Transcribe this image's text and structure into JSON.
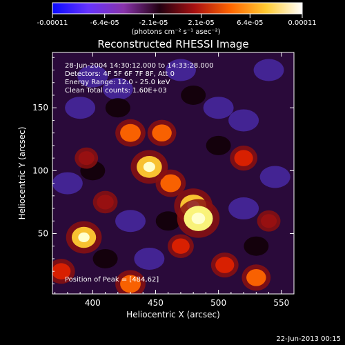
{
  "colorbar": {
    "tick_labels": [
      "-0.00011",
      "-6.4e-05",
      "-2.1e-05",
      "2.1e-05",
      "6.4e-05",
      "0.00011"
    ],
    "tick_values": [
      -0.00011,
      -6.4e-05,
      -2.1e-05,
      2.1e-05,
      6.4e-05,
      0.00011
    ],
    "range": [
      -0.00011,
      0.00011
    ],
    "unit_label": "(photons cm⁻² s⁻¹ asec⁻²)",
    "colors": [
      "#0a0aff",
      "#6633ff",
      "#8833aa",
      "#220011",
      "#aa1111",
      "#ff6600",
      "#ffcc33",
      "#ffffff"
    ]
  },
  "chart_data": {
    "type": "heatmap",
    "title": "Reconstructed RHESSI Image",
    "xlabel": "Heliocentric X (arcsec)",
    "ylabel": "Heliocentric Y (arcsec)",
    "xlim": [
      368,
      560
    ],
    "ylim": [
      2,
      194
    ],
    "xticks": [
      400,
      450,
      500,
      550
    ],
    "yticks": [
      50,
      100,
      150
    ],
    "info_lines": [
      "28-Jun-2004 14:30:12.000 to 14:33:28.000",
      "Detectors: 4F 5F 6F 7F 8F, Att 0",
      "Energy Range: 12.0 - 25.0 keV",
      "Clean    Total counts: 1.60E+03"
    ],
    "peak_label": "Position of Peak = [484,62]",
    "peak": [
      484,
      62
    ],
    "sources": [
      {
        "x": 484,
        "y": 62,
        "level": 1.0
      },
      {
        "x": 480,
        "y": 72,
        "level": 0.85
      },
      {
        "x": 445,
        "y": 103,
        "level": 0.8
      },
      {
        "x": 393,
        "y": 47,
        "level": 0.75
      },
      {
        "x": 462,
        "y": 90,
        "level": 0.55
      },
      {
        "x": 430,
        "y": 130,
        "level": 0.55
      },
      {
        "x": 455,
        "y": 130,
        "level": 0.5
      },
      {
        "x": 520,
        "y": 110,
        "level": 0.45
      },
      {
        "x": 430,
        "y": 10,
        "level": 0.55
      },
      {
        "x": 530,
        "y": 15,
        "level": 0.5
      },
      {
        "x": 375,
        "y": 20,
        "level": 0.45
      },
      {
        "x": 505,
        "y": 25,
        "level": 0.45
      },
      {
        "x": 410,
        "y": 75,
        "level": 0.35
      },
      {
        "x": 395,
        "y": 110,
        "level": 0.3
      },
      {
        "x": 540,
        "y": 60,
        "level": 0.3
      },
      {
        "x": 470,
        "y": 40,
        "level": 0.4
      }
    ]
  },
  "footer": {
    "date": "22-Jun-2013 00:15"
  }
}
